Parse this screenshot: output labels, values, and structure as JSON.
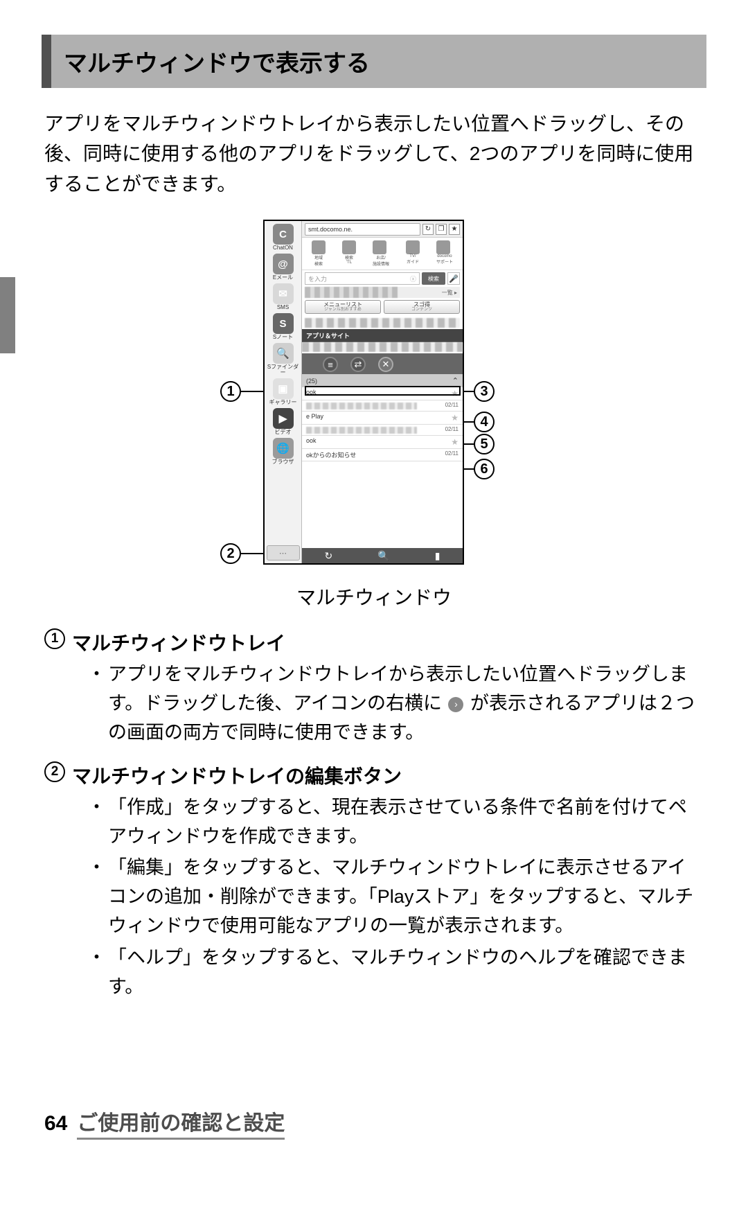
{
  "header": {
    "title": "マルチウィンドウで表示する"
  },
  "intro": "アプリをマルチウィンドウトレイから表示したい位置へドラッグし、その後、同時に使用する他のアプリをドラッグして、2つのアプリを同時に使用することができます。",
  "figure": {
    "caption": "マルチウィンドウ",
    "callouts": {
      "c1": "1",
      "c2": "2",
      "c3": "3",
      "c4": "4",
      "c5": "5",
      "c6": "6"
    },
    "tray": [
      {
        "label": "ChatON",
        "glyph": "C",
        "bg": "#888888"
      },
      {
        "label": "Eメール",
        "glyph": "@",
        "bg": "#8a8a8a"
      },
      {
        "label": "SMS",
        "glyph": "✉",
        "bg": "#d8d8d8"
      },
      {
        "label": "Sノート",
        "glyph": "S",
        "bg": "#666666"
      },
      {
        "label": "Sファインダー",
        "glyph": "🔍",
        "bg": "#cfcfcf"
      },
      {
        "label": "ギャラリー",
        "glyph": "▣",
        "bg": "#e0e0e0"
      },
      {
        "label": "ビデオ",
        "glyph": "▶",
        "bg": "#444444"
      },
      {
        "label": "ブラウザ",
        "glyph": "🌐",
        "bg": "#9a9a9a"
      }
    ],
    "tray_edit_glyph": "⋯",
    "urlbar": {
      "url": "smt.docomo.ne.",
      "refresh": "↻",
      "tabs": "❐",
      "bookmark": "★"
    },
    "portal_labels": [
      "地域\n検索",
      "検索\n'TL",
      "お店/\n施設情報",
      "TV/\nガイド",
      "docomo\nサポート"
    ],
    "search_placeholder": "を入力",
    "search_btn": "検索",
    "tags_more": "一覧 ▸",
    "tabs": [
      {
        "main": "メニューリスト",
        "sub": "ジャンル別おすすめ"
      },
      {
        "main": "スゴ得",
        "sub": "コンテンツ"
      }
    ],
    "dark_bar": "アプリ＆サイト",
    "list_header_label": "(25)",
    "rows": [
      {
        "title": "ook",
        "date": "",
        "star": "★"
      },
      {
        "title": "",
        "date": "02/11",
        "blur": true
      },
      {
        "title": "e Play",
        "date": "",
        "star": "★"
      },
      {
        "title": "",
        "date": "02/11",
        "blur": true
      },
      {
        "title": "ook",
        "date": "",
        "star": "★"
      },
      {
        "title": "okからのお知らせ",
        "date": "02/11"
      }
    ],
    "bottom_icons": [
      "↻",
      "🔍",
      "▮"
    ]
  },
  "descriptions": [
    {
      "num": "1",
      "title": "マルチウィンドウトレイ",
      "bullets": [
        "アプリをマルチウィンドウトレイから表示したい位置へドラッグします。ドラッグした後、アイコンの右横に　　が表示されるアプリは２つの画面の両方で同時に使用できます。"
      ]
    },
    {
      "num": "2",
      "title": "マルチウィンドウトレイの編集ボタン",
      "bullets": [
        "「作成」をタップすると、現在表示させている条件で名前を付けてペアウィンドウを作成できます。",
        "「編集」をタップすると、マルチウィンドウトレイに表示させるアイコンの追加・削除ができます。「Playストア」をタップすると、マルチウィンドウで使用可能なアプリの一覧が表示されます。",
        "「ヘルプ」をタップすると、マルチウィンドウのヘルプを確認できます。"
      ]
    }
  ],
  "footer": {
    "page": "64",
    "title": "ご使用前の確認と設定"
  },
  "inline_icon_glyph": "›"
}
